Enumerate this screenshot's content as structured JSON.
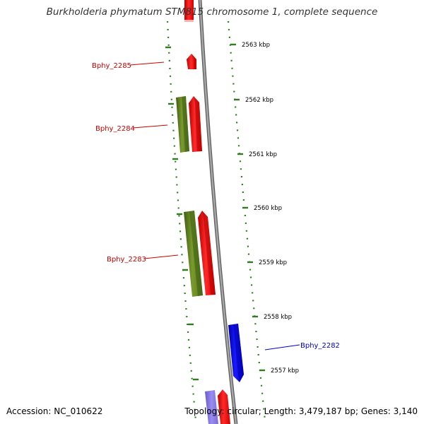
{
  "title": "Burkholderia phymatum STM815 chromosome 1, complete sequence",
  "footer": {
    "accession": "Accession: NC_010622",
    "summary": "Topology: circular; Length: 3,479,187 bp; Genes: 3,140"
  },
  "colors": {
    "forward_cds": "#ff0000",
    "reverse_cds": "#0000ee",
    "rna_gene": "#5a7f1f",
    "label_forward": "#cc0000",
    "label_reverse": "#0000cc",
    "backbone": "#8c8c8c",
    "tick": "#2e7d1e",
    "faded_reverse": "#8c7ce6"
  },
  "scale_ticks": [
    {
      "label": "2563 kbp"
    },
    {
      "label": "2562 kbp"
    },
    {
      "label": "2561 kbp"
    },
    {
      "label": "2560 kbp"
    },
    {
      "label": "2559 kbp"
    },
    {
      "label": "2558 kbp"
    },
    {
      "label": "2557 kbp"
    }
  ],
  "gene_labels": [
    {
      "text": "Bphy_2285",
      "strand": "forward"
    },
    {
      "text": "Bphy_2284",
      "strand": "forward"
    },
    {
      "text": "Bphy_2283",
      "strand": "forward"
    },
    {
      "text": "Bphy_2282",
      "strand": "reverse"
    }
  ]
}
